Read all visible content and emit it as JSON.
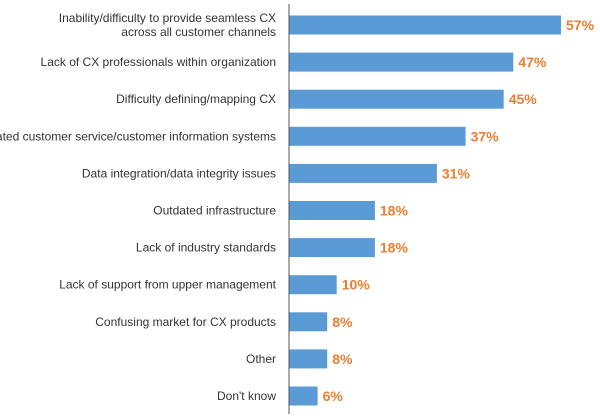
{
  "chart_data": {
    "type": "bar",
    "orientation": "horizontal",
    "title": "",
    "xlabel": "",
    "ylabel": "",
    "categories": [
      "Inability/difficulty to provide seamless CX across all customer channels",
      "Lack of CX professionals within organization",
      "Difficulty defining/mapping CX",
      "Outdated customer service/customer information systems",
      "Data integration/data integrity issues",
      "Outdated infrastructure",
      "Lack of industry standards",
      "Lack of support from upper management",
      "Confusing market for CX products",
      "Other",
      "Don't know"
    ],
    "category_lines": [
      [
        "Inability/difficulty to provide seamless CX",
        "across all customer channels"
      ],
      [
        "Lack of CX professionals within organization"
      ],
      [
        "Difficulty defining/mapping CX"
      ],
      [
        "Outdated customer service/customer information systems"
      ],
      [
        "Data integration/data integrity issues"
      ],
      [
        "Outdated infrastructure"
      ],
      [
        "Lack of industry standards"
      ],
      [
        "Lack of support from upper management"
      ],
      [
        "Confusing market for CX products"
      ],
      [
        "Other"
      ],
      [
        "Don't know"
      ]
    ],
    "values": [
      57,
      47,
      45,
      37,
      31,
      18,
      18,
      10,
      8,
      8,
      6
    ],
    "value_labels": [
      "57%",
      "47%",
      "45%",
      "37%",
      "31%",
      "18%",
      "18%",
      "10%",
      "8%",
      "8%",
      "6%"
    ],
    "xlim": [
      0,
      57
    ],
    "grid": false,
    "legend": "none",
    "colors": {
      "bar": "#5b9bd5",
      "value_label": "#ed7d31",
      "axis": "#555555",
      "text": "#333333"
    }
  }
}
